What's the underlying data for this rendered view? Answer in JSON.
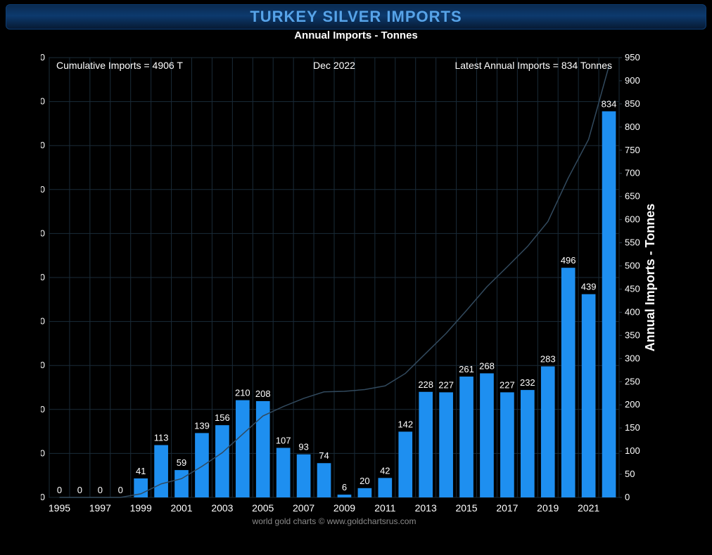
{
  "title": "TURKEY SILVER IMPORTS",
  "subtitle": "Annual Imports - Tonnes",
  "annotations": {
    "cumulative": "Cumulative Imports = 4906 T",
    "date": "Dec 2022",
    "latest": "Latest Annual Imports = 834 Tonnes"
  },
  "right_axis_title": "Annual Imports - Tonnes",
  "footer": "world gold charts © www.goldchartsrus.com",
  "chart": {
    "type": "bar_with_cumulative_line",
    "background_color": "#000000",
    "grid_color": "#1a2b38",
    "bar_color": "#1e8ff0",
    "line_color": "#324a5e",
    "text_color": "#ffffff",
    "title_color": "#57a3e8",
    "left_axis": {
      "min": 0,
      "max": 5000,
      "step": 500
    },
    "right_axis": {
      "min": 0,
      "max": 950,
      "step": 50
    },
    "categories": [
      "1995",
      "1996",
      "1997",
      "1998",
      "1999",
      "2000",
      "2001",
      "2002",
      "2003",
      "2004",
      "2005",
      "2006",
      "2007",
      "2008",
      "2009",
      "2010",
      "2011",
      "2012",
      "2013",
      "2014",
      "2015",
      "2016",
      "2017",
      "2018",
      "2019",
      "2020",
      "2021",
      "2022"
    ],
    "x_tick_labels": [
      "1995",
      "1997",
      "1999",
      "2001",
      "2003",
      "2005",
      "2007",
      "2009",
      "2011",
      "2013",
      "2015",
      "2017",
      "2019",
      "2021"
    ],
    "values": [
      0,
      0,
      0,
      0,
      41,
      113,
      59,
      139,
      156,
      210,
      208,
      107,
      93,
      74,
      6,
      20,
      42,
      142,
      228,
      227,
      261,
      268,
      227,
      232,
      283,
      496,
      439,
      834
    ],
    "bar_width_ratio": 0.68,
    "label_fontsize": 13,
    "axis_fontsize": 13
  }
}
